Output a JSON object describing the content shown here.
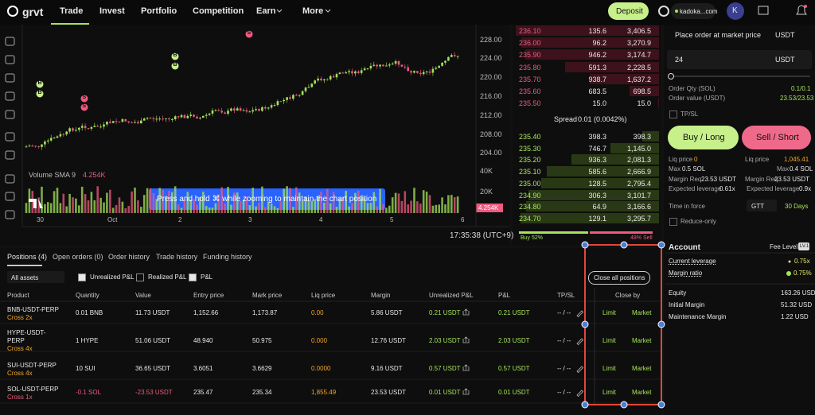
{
  "nav": {
    "logo": "grvt",
    "items": [
      "Trade",
      "Invest",
      "Portfolio",
      "Competition",
      "Earn",
      "More"
    ],
    "deposit": "Deposit",
    "account": "kadoka...com",
    "avatar": "K"
  },
  "chart": {
    "price_ticks": [
      "228.00",
      "224.00",
      "220.00",
      "216.00",
      "212.00",
      "208.00",
      "204.00"
    ],
    "volume_label": "Volume SMA 9",
    "volume_value": "4.254K",
    "volume_ticks": [
      "40K",
      "20K"
    ],
    "volume_badge": "4.254K",
    "time_labels": [
      "30",
      "Oct",
      "2",
      "3",
      "4",
      "5",
      "6"
    ],
    "markers": [
      "B",
      "B",
      "S",
      "S",
      "B",
      "B",
      "S"
    ],
    "toast": "Press and hold ⌘ while zooming to maintain the chart position",
    "clock": "17:35:38 (UTC+9)"
  },
  "orderbook": {
    "asks": [
      [
        "236.10",
        "135.6",
        "3,406.5"
      ],
      [
        "236.00",
        "96.2",
        "3,270.9"
      ],
      [
        "235.90",
        "946.2",
        "3,174.7"
      ],
      [
        "235.80",
        "591.3",
        "2,228.5"
      ],
      [
        "235.70",
        "938.7",
        "1,637.2"
      ],
      [
        "235.60",
        "683.5",
        "698.5"
      ],
      [
        "235.50",
        "15.0",
        "15.0"
      ]
    ],
    "spread_label": "Spread",
    "spread_value": "0.01 (0.0042%)",
    "bids": [
      [
        "235.40",
        "398.3",
        "398.3"
      ],
      [
        "235.30",
        "746.7",
        "1,145.0"
      ],
      [
        "235.20",
        "936.3",
        "2,081.3"
      ],
      [
        "235.10",
        "585.6",
        "2,666.9"
      ],
      [
        "235.00",
        "128.5",
        "2,795.4"
      ],
      [
        "234.90",
        "306.3",
        "3,101.7"
      ],
      [
        "234.80",
        "64.9",
        "3,166.6"
      ],
      [
        "234.70",
        "129.1",
        "3,295.7"
      ]
    ],
    "buy_ratio": "Buy 52%",
    "sell_ratio": "48% Sell"
  },
  "order": {
    "title": "Place order at market price",
    "currency": "USDT",
    "amount": "24",
    "amount_currency": "USDT",
    "qty_label": "Order Qty (SOL)",
    "qty_value": "0.1/0.1",
    "value_label": "Order value (USDT)",
    "value_value": "23.53/23.53",
    "tpsl": "TP/SL",
    "buy": "Buy / Long",
    "sell": "Sell / Short",
    "buy_info": [
      [
        "Liq price",
        "0"
      ],
      [
        "Max",
        "0.5 SOL"
      ],
      [
        "Margin Req",
        "23.53 USDT"
      ],
      [
        "Expected leverage",
        "0.61x"
      ]
    ],
    "sell_info": [
      [
        "Liq price",
        "1,045.41"
      ],
      [
        "Max",
        "0.4 SOL"
      ],
      [
        "Margin Req",
        "23.53 USDT"
      ],
      [
        "Expected leverage",
        "0.9x"
      ]
    ],
    "tif_label": "Time in force",
    "tif_value": "GTT",
    "tif_days": "30 Days",
    "reduce_only": "Reduce-only"
  },
  "positions": {
    "tabs": [
      "Positions (4)",
      "Open orders (0)",
      "Order history",
      "Trade history",
      "Funding history"
    ],
    "asset_filter": "All assets",
    "checks": [
      "Unrealized P&L",
      "Realized P&L",
      "P&L"
    ],
    "close_all": "Close all positions",
    "headers": [
      "Product",
      "Quantity",
      "Value",
      "Entry price",
      "Mark price",
      "Liq price",
      "Margin",
      "Unrealized P&L",
      "P&L",
      "TP/SL",
      "Close by"
    ],
    "rows": [
      [
        "BNB-USDT-PERP",
        "Cross 2x",
        "0.01 BNB",
        "11.73 USDT",
        "1,152.66",
        "1,173.87",
        "0.00",
        "5.86 USDT",
        "0.21 USDT",
        "0.21 USDT",
        "-- / --",
        "Limit",
        "Market"
      ],
      [
        "HYPE-USDT-PERP",
        "Cross 4x",
        "1 HYPE",
        "51.06 USDT",
        "48.940",
        "50.975",
        "0.000",
        "12.76 USDT",
        "2.03 USDT",
        "2.03 USDT",
        "-- / --",
        "Limit",
        "Market"
      ],
      [
        "SUI-USDT-PERP",
        "Cross 4x",
        "10 SUI",
        "36.65 USDT",
        "3.6051",
        "3.6629",
        "0.0000",
        "9.16 USDT",
        "0.57 USDT",
        "0.57 USDT",
        "-- / --",
        "Limit",
        "Market"
      ],
      [
        "SOL-USDT-PERP",
        "Cross 1x",
        "-0.1 SOL",
        "-23.53 USDT",
        "235.47",
        "235.34",
        "1,855.49",
        "23.53 USDT",
        "0.01 USDT",
        "0.01 USDT",
        "-- / --",
        "Limit",
        "Market"
      ]
    ]
  },
  "account": {
    "title": "Account",
    "fee_label": "Fee Level",
    "fee_value": "LV.1",
    "rows": [
      [
        "Current leverage",
        "0.75x"
      ],
      [
        "Margin ratio",
        "0.75%"
      ],
      [
        "Equity",
        "163.26 USD"
      ],
      [
        "Initial Margin",
        "51.32 USD"
      ],
      [
        "Maintenance Margin",
        "1.22 USD"
      ]
    ]
  }
}
